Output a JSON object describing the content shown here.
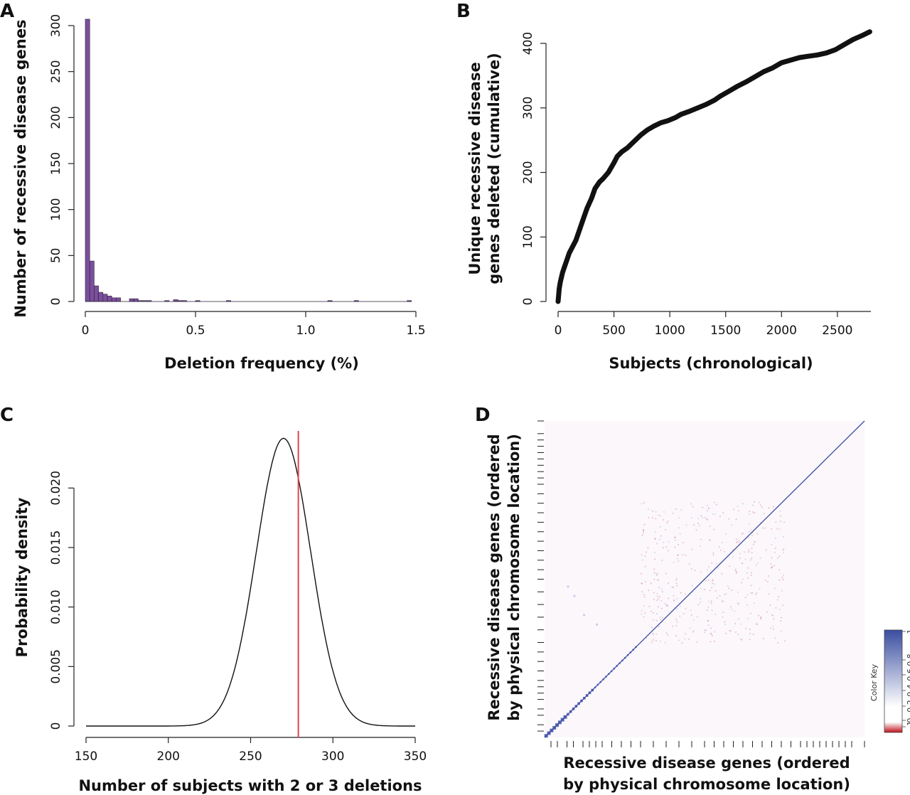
{
  "chart_data": [
    {
      "panel": "A",
      "type": "bar",
      "xlabel": "Deletion frequency (%)",
      "ylabel": "Number of recessive disease genes",
      "xlim": [
        0,
        1.5
      ],
      "ylim": [
        0,
        300
      ],
      "xticks": [
        "0",
        "0.5",
        "1.0",
        "1.5"
      ],
      "yticks": [
        "0",
        "50",
        "100",
        "150",
        "200",
        "250",
        "300"
      ],
      "bar_color": "#7b4f9d",
      "bin_width": 0.02,
      "bins": [
        {
          "x": 0.0,
          "value": 307
        },
        {
          "x": 0.02,
          "value": 44
        },
        {
          "x": 0.04,
          "value": 17
        },
        {
          "x": 0.06,
          "value": 10
        },
        {
          "x": 0.08,
          "value": 8
        },
        {
          "x": 0.1,
          "value": 6
        },
        {
          "x": 0.12,
          "value": 4
        },
        {
          "x": 0.14,
          "value": 4
        },
        {
          "x": 0.2,
          "value": 3
        },
        {
          "x": 0.22,
          "value": 3
        },
        {
          "x": 0.24,
          "value": 1
        },
        {
          "x": 0.26,
          "value": 1
        },
        {
          "x": 0.28,
          "value": 1
        },
        {
          "x": 0.36,
          "value": 1
        },
        {
          "x": 0.4,
          "value": 2
        },
        {
          "x": 0.42,
          "value": 1
        },
        {
          "x": 0.44,
          "value": 1
        },
        {
          "x": 0.5,
          "value": 1
        },
        {
          "x": 0.64,
          "value": 1
        },
        {
          "x": 1.1,
          "value": 1
        },
        {
          "x": 1.22,
          "value": 1
        },
        {
          "x": 1.46,
          "value": 1
        }
      ]
    },
    {
      "panel": "B",
      "type": "line",
      "xlabel": "Subjects (chronological)",
      "ylabel": "Unique recessive disease genes deleted (cumulative)",
      "ylabel_lines": [
        "Unique recessive disease",
        "genes deleted (cumulative)"
      ],
      "xlim": [
        0,
        2800
      ],
      "ylim": [
        0,
        420
      ],
      "xticks": [
        "0",
        "500",
        "1000",
        "1500",
        "2000",
        "2500"
      ],
      "yticks": [
        "0",
        "100",
        "200",
        "300",
        "400"
      ],
      "line_color": "#111111",
      "x": [
        0,
        5,
        10,
        20,
        40,
        60,
        80,
        100,
        130,
        160,
        200,
        230,
        260,
        300,
        330,
        370,
        400,
        450,
        500,
        530,
        570,
        620,
        680,
        740,
        800,
        860,
        920,
        980,
        1050,
        1100,
        1180,
        1250,
        1320,
        1400,
        1450,
        1520,
        1600,
        1680,
        1760,
        1840,
        1920,
        2000,
        2080,
        2160,
        2240,
        2320,
        2400,
        2480,
        2560,
        2640,
        2720,
        2790
      ],
      "y": [
        0,
        10,
        20,
        30,
        45,
        55,
        65,
        75,
        85,
        95,
        115,
        130,
        145,
        160,
        175,
        185,
        190,
        200,
        215,
        225,
        232,
        238,
        248,
        258,
        266,
        272,
        277,
        280,
        285,
        290,
        295,
        300,
        305,
        312,
        318,
        325,
        333,
        340,
        348,
        356,
        362,
        370,
        374,
        378,
        380,
        382,
        385,
        390,
        398,
        406,
        412,
        418
      ]
    },
    {
      "panel": "C",
      "type": "line",
      "xlabel": "Number of subjects with 2 or 3 deletions",
      "ylabel": "Probability density",
      "xlim": [
        150,
        350
      ],
      "ylim": [
        0,
        0.0245
      ],
      "xticks": [
        "150",
        "200",
        "250",
        "300",
        "350"
      ],
      "yticks": [
        "0",
        "0.005",
        "0.010",
        "0.015",
        "0.020"
      ],
      "distribution": {
        "mean": 270,
        "sd": 16.5
      },
      "line_color": "#111111",
      "observed": {
        "x": 279,
        "color": "#e0455a"
      }
    },
    {
      "panel": "D",
      "type": "heatmap",
      "xlabel_lines": [
        "Recessive disease genes (ordered",
        "by physical chromosome location)"
      ],
      "ylabel_lines": [
        "Recessive disease genes (ordered",
        "by physical chromosome location)"
      ],
      "n_genes": 418,
      "color_key": {
        "label": "Color Key",
        "ticks": [
          "−1",
          "0",
          "0.2",
          "0.4",
          "0.6",
          "0.8",
          "1"
        ],
        "low_color": "#c0111b",
        "mid_color": "#ffffff",
        "high_color": "#3a4ea0"
      },
      "background_color": "#fbf7fb",
      "diagonal_color": "#3d4fa3",
      "chromosome_boundaries": [
        0.02,
        0.04,
        0.07,
        0.09,
        0.12,
        0.14,
        0.16,
        0.18,
        0.21,
        0.24,
        0.27,
        0.3,
        0.34,
        0.38,
        0.42,
        0.46,
        0.5,
        0.53,
        0.56,
        0.59,
        0.62,
        0.65,
        0.68,
        0.71,
        0.74,
        0.77,
        0.8,
        0.82,
        0.84,
        0.86,
        0.88,
        0.9,
        0.92,
        0.94,
        0.96,
        1.0
      ]
    }
  ]
}
